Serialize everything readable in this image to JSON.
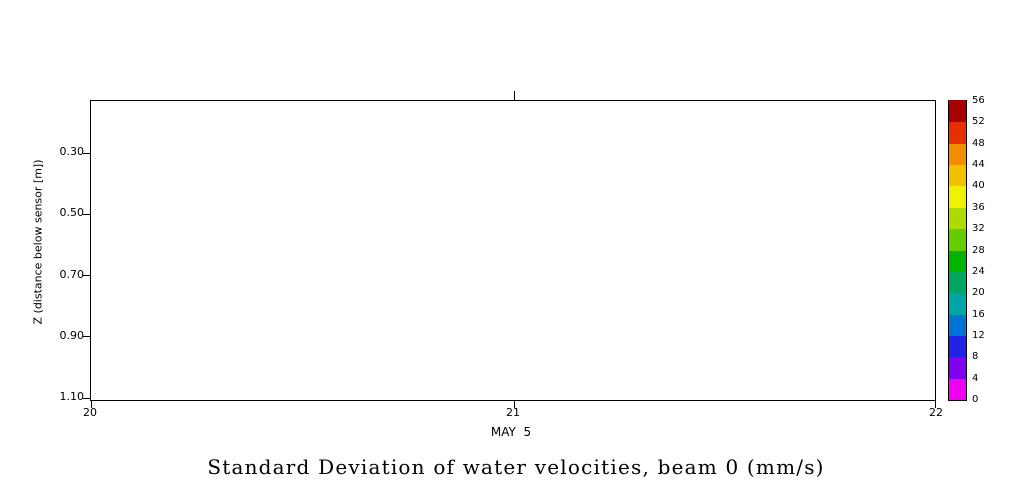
{
  "chart_data": {
    "type": "heatmap",
    "title": "Standard Deviation of water velocities, beam 0 (mm/s)",
    "xlabel": "MAY  5",
    "ylabel": "Z (distance below sensor [m])",
    "x_axis": {
      "ticks": [
        "20",
        "21",
        "22"
      ],
      "label": "MAY  5"
    },
    "y_axis": {
      "ticks": [
        "0.30",
        "0.50",
        "0.70",
        "0.90",
        "1.10"
      ],
      "label": "Z (distance below sensor [m])",
      "direction": "values increase downward"
    },
    "series": [],
    "note": "plot panel is blank - no data rendered",
    "colorbar": {
      "unit": "mm/s",
      "range": [
        0,
        56
      ],
      "step": 4,
      "tick_labels": [
        "0",
        "4",
        "8",
        "12",
        "16",
        "20",
        "24",
        "28",
        "32",
        "36",
        "40",
        "44",
        "48",
        "52",
        "56"
      ],
      "colors_bottom_to_top": [
        "#F000F0",
        "#8000F0",
        "#2222E6",
        "#0073D9",
        "#00A6A6",
        "#00A660",
        "#00B300",
        "#66CC00",
        "#ABDB00",
        "#F2F200",
        "#F2C200",
        "#F28C00",
        "#E63000",
        "#A60000"
      ]
    }
  }
}
